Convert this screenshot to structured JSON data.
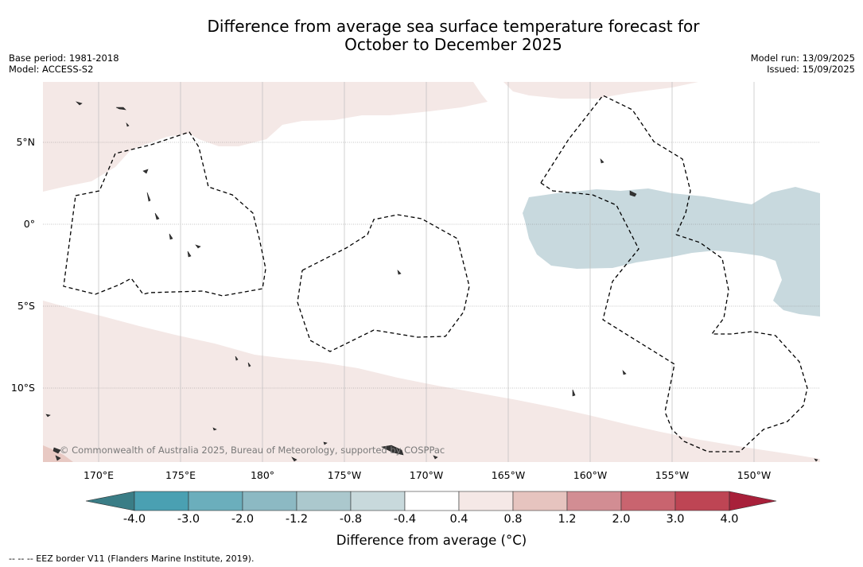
{
  "title": {
    "line1": "Difference from average sea surface temperature forecast for",
    "line2": "October to December 2025"
  },
  "meta": {
    "base_period": "Base period: 1981-2018",
    "model": "Model: ACCESS-S2",
    "model_run": "Model run: 13/09/2025",
    "issued": "Issued: 15/09/2025"
  },
  "map": {
    "lat_labels": [
      "5°N",
      "0°",
      "5°S",
      "10°S"
    ],
    "lon_labels": [
      "170°E",
      "175°E",
      "180°",
      "175°W",
      "170°W",
      "165°W",
      "160°W",
      "155°W",
      "150°W"
    ],
    "copyright": "© Commonwealth of Australia 2025, Bureau of Meteorology, supported by COSPPac",
    "warm_anomaly_color": "#f4e8e6",
    "cool_anomaly_color": "#c8d9de",
    "land_color": "#333333"
  },
  "colorbar": {
    "ticks": [
      "-4.0",
      "-3.0",
      "-2.0",
      "-1.2",
      "-0.8",
      "-0.4",
      "0.4",
      "0.8",
      "1.2",
      "2.0",
      "3.0",
      "4.0"
    ],
    "colors": [
      "#3a7d86",
      "#4aa0b2",
      "#6baebc",
      "#8cb9c3",
      "#abc8cd",
      "#c8d9dc",
      "#ffffff",
      "#f5e8e6",
      "#e6c4bf",
      "#d28d93",
      "#c9646f",
      "#be4554",
      "#a8203a"
    ],
    "label": "Difference from average (°C)"
  },
  "footnote": "--  --  -- EEZ border V11 (Flanders Marine Institute, 2019)."
}
